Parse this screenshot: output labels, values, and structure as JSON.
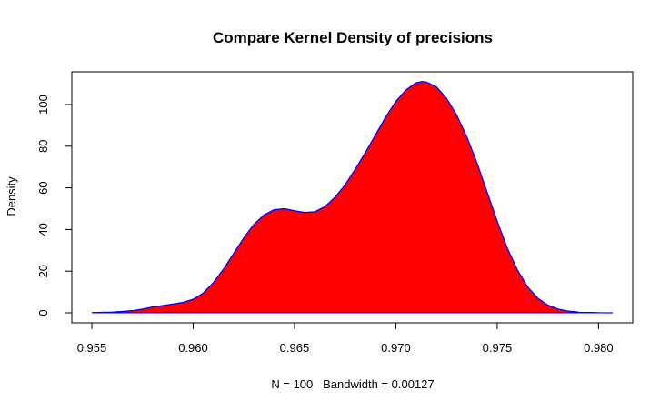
{
  "chart_data": {
    "type": "area",
    "title": "Compare Kernel Density of precisions",
    "xlabel": "N = 100   Bandwidth = 0.00127",
    "ylabel": "Density",
    "xlim": [
      0.955,
      0.981
    ],
    "ylim": [
      0,
      114
    ],
    "x_ticks": [
      {
        "value": 0.955,
        "label": "0.955"
      },
      {
        "value": 0.96,
        "label": "0.960"
      },
      {
        "value": 0.965,
        "label": "0.965"
      },
      {
        "value": 0.97,
        "label": "0.970"
      },
      {
        "value": 0.975,
        "label": "0.975"
      },
      {
        "value": 0.98,
        "label": "0.980"
      }
    ],
    "y_ticks": [
      {
        "value": 0,
        "label": "0"
      },
      {
        "value": 20,
        "label": "20"
      },
      {
        "value": 40,
        "label": "40"
      },
      {
        "value": 60,
        "label": "60"
      },
      {
        "value": 80,
        "label": "80"
      },
      {
        "value": 100,
        "label": "100"
      }
    ],
    "grid": false,
    "fill_color": "#ff0000",
    "line_color": "#0000ff",
    "series": [
      {
        "x": [
          0.955,
          0.956,
          0.957,
          0.9575,
          0.958,
          0.9585,
          0.959,
          0.9595,
          0.96,
          0.9605,
          0.961,
          0.9615,
          0.962,
          0.9625,
          0.963,
          0.9635,
          0.964,
          0.9645,
          0.965,
          0.9655,
          0.966,
          0.9665,
          0.967,
          0.9675,
          0.968,
          0.9685,
          0.969,
          0.9695,
          0.97,
          0.9705,
          0.971,
          0.9713,
          0.9715,
          0.972,
          0.9725,
          0.973,
          0.9735,
          0.974,
          0.9745,
          0.975,
          0.9755,
          0.976,
          0.9765,
          0.977,
          0.9775,
          0.978,
          0.9785,
          0.979,
          0.98,
          0.9807
        ],
        "values": [
          0.1,
          0.3,
          1.0,
          1.8,
          2.8,
          3.5,
          4.2,
          5.0,
          6.5,
          9.5,
          14.5,
          21.0,
          28.5,
          36.0,
          42.5,
          47.0,
          49.5,
          50.0,
          49.0,
          48.2,
          48.5,
          51.0,
          55.5,
          61.5,
          69.0,
          77.0,
          85.5,
          94.0,
          101.5,
          107.0,
          110.5,
          111.0,
          110.8,
          108.5,
          103.0,
          95.0,
          84.5,
          72.0,
          58.0,
          44.0,
          31.0,
          20.5,
          12.5,
          7.0,
          3.7,
          1.8,
          0.8,
          0.35,
          0.05,
          0.0
        ]
      }
    ]
  }
}
